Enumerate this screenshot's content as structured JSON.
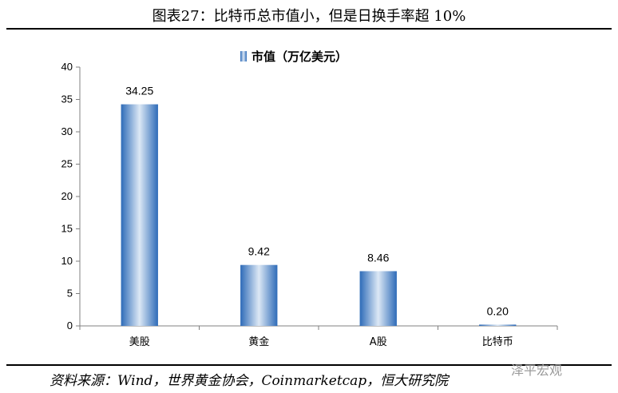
{
  "header": {
    "title": "图表27：比特币总市值小，但是日换手率超 10%"
  },
  "footer": {
    "source": "资料来源：Wind，世界黄金协会，Coinmarketcap，恒大研究院",
    "watermark": "泽平宏观"
  },
  "chart_data": {
    "type": "bar",
    "categories": [
      "美股",
      "黄金",
      "A股",
      "比特币"
    ],
    "series": [
      {
        "name": "市值（万亿美元）",
        "values": [
          34.25,
          9.42,
          8.46,
          0.2
        ],
        "labels": [
          "34.25",
          "9.42",
          "8.46",
          "0.20"
        ]
      }
    ],
    "ylim": [
      0,
      40
    ],
    "yticks": [
      0,
      5,
      10,
      15,
      20,
      25,
      30,
      35,
      40
    ],
    "legend_position": "top-center",
    "grid": false,
    "colors": {
      "bar_edge": "#2e6bb8",
      "bar_center": "#dce8f5"
    }
  }
}
